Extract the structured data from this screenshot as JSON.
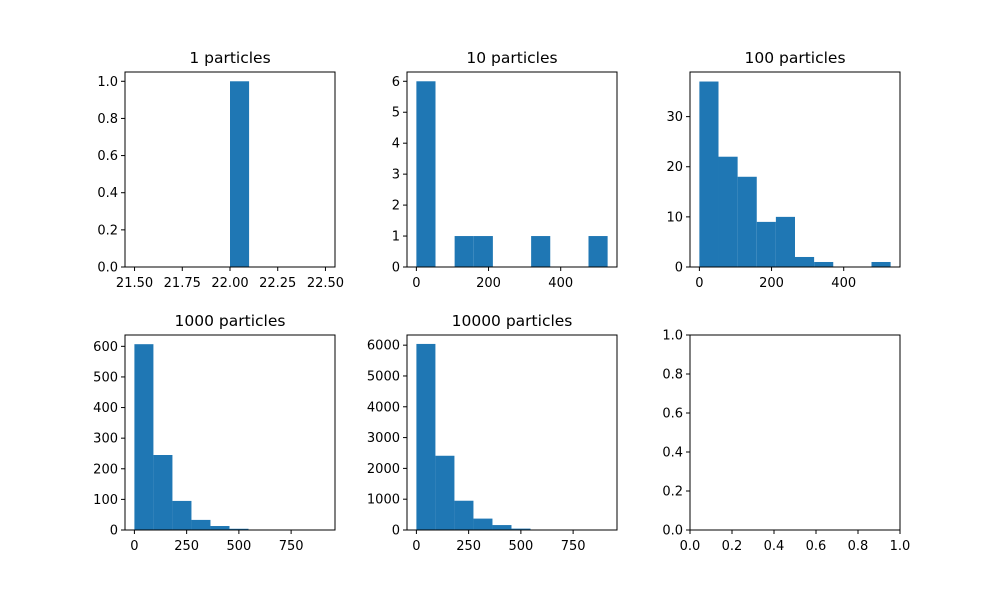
{
  "colors": {
    "bar": "#1f77b4",
    "axes": "#000000",
    "background": "#ffffff"
  },
  "chart_data": [
    {
      "type": "bar",
      "title": "1 particles",
      "xlim": [
        21.45,
        22.55
      ],
      "ylim": [
        0,
        1.05
      ],
      "xticks": [
        21.5,
        21.75,
        22.0,
        22.25,
        22.5
      ],
      "xtick_labels": [
        "21.50",
        "21.75",
        "22.00",
        "22.25",
        "22.50"
      ],
      "yticks": [
        0,
        0.2,
        0.4,
        0.6,
        0.8,
        1.0
      ],
      "ytick_labels": [
        "0.0",
        "0.2",
        "0.4",
        "0.6",
        "0.8",
        "1.0"
      ],
      "bin_edges": [
        21.5,
        21.6,
        21.7,
        21.8,
        21.9,
        22.0,
        22.1,
        22.2,
        22.3,
        22.4,
        22.5
      ],
      "values": [
        0,
        0,
        0,
        0,
        0,
        1,
        0,
        0,
        0,
        0
      ]
    },
    {
      "type": "bar",
      "title": "10 particles",
      "xlim": [
        -26,
        556
      ],
      "ylim": [
        0,
        6.3
      ],
      "xticks": [
        0,
        200,
        400
      ],
      "xtick_labels": [
        "0",
        "200",
        "400"
      ],
      "yticks": [
        0,
        1,
        2,
        3,
        4,
        5,
        6
      ],
      "ytick_labels": [
        "0",
        "1",
        "2",
        "3",
        "4",
        "5",
        "6"
      ],
      "bin_edges": [
        0,
        53,
        106,
        159,
        212,
        265,
        318,
        371,
        424,
        477,
        530
      ],
      "values": [
        6,
        0,
        1,
        1,
        0,
        0,
        1,
        0,
        0,
        1
      ]
    },
    {
      "type": "bar",
      "title": "100 particles",
      "xlim": [
        -26,
        556
      ],
      "ylim": [
        0,
        38.9
      ],
      "xticks": [
        0,
        200,
        400
      ],
      "xtick_labels": [
        "0",
        "200",
        "400"
      ],
      "yticks": [
        0,
        10,
        20,
        30
      ],
      "ytick_labels": [
        "0",
        "10",
        "20",
        "30"
      ],
      "bin_edges": [
        0,
        53,
        106,
        159,
        212,
        265,
        318,
        371,
        424,
        477,
        530
      ],
      "values": [
        37,
        22,
        18,
        9,
        10,
        2,
        1,
        0,
        0,
        1
      ]
    },
    {
      "type": "bar",
      "title": "1000 particles",
      "xlim": [
        -45,
        960
      ],
      "ylim": [
        0,
        637
      ],
      "xticks": [
        0,
        250,
        500,
        750
      ],
      "xtick_labels": [
        "0",
        "250",
        "500",
        "750"
      ],
      "yticks": [
        0,
        100,
        200,
        300,
        400,
        500,
        600
      ],
      "ytick_labels": [
        "0",
        "100",
        "200",
        "300",
        "400",
        "500",
        "600"
      ],
      "bin_edges": [
        0,
        91,
        182,
        273,
        364,
        455,
        546,
        637,
        728,
        819,
        910
      ],
      "values": [
        607,
        245,
        95,
        33,
        13,
        4,
        1,
        1,
        0,
        1
      ]
    },
    {
      "type": "bar",
      "title": "10000 particles",
      "xlim": [
        -45,
        960
      ],
      "ylim": [
        0,
        6330
      ],
      "xticks": [
        0,
        250,
        500,
        750
      ],
      "xtick_labels": [
        "0",
        "250",
        "500",
        "750"
      ],
      "yticks": [
        0,
        1000,
        2000,
        3000,
        4000,
        5000,
        6000
      ],
      "ytick_labels": [
        "0",
        "1000",
        "2000",
        "3000",
        "4000",
        "5000",
        "6000"
      ],
      "bin_edges": [
        0,
        91,
        182,
        273,
        364,
        455,
        546,
        637,
        728,
        819,
        910
      ],
      "values": [
        6040,
        2410,
        950,
        370,
        160,
        45,
        15,
        6,
        3,
        1
      ]
    },
    {
      "type": "bar",
      "title": "",
      "xlim": [
        0,
        1
      ],
      "ylim": [
        0,
        1
      ],
      "xticks": [
        0,
        0.2,
        0.4,
        0.6,
        0.8,
        1.0
      ],
      "xtick_labels": [
        "0.0",
        "0.2",
        "0.4",
        "0.6",
        "0.8",
        "1.0"
      ],
      "yticks": [
        0,
        0.2,
        0.4,
        0.6,
        0.8,
        1.0
      ],
      "ytick_labels": [
        "0.0",
        "0.2",
        "0.4",
        "0.6",
        "0.8",
        "1.0"
      ],
      "bin_edges": [],
      "values": []
    }
  ]
}
